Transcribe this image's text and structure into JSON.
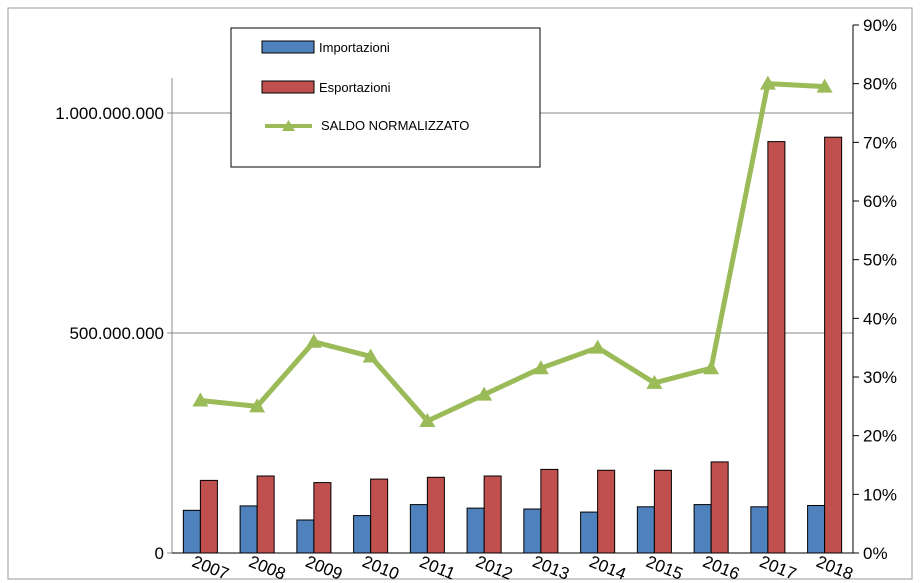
{
  "chart_data": {
    "type": "bar",
    "categories": [
      "2007",
      "2008",
      "2009",
      "2010",
      "2011",
      "2012",
      "2013",
      "2014",
      "2015",
      "2016",
      "2017",
      "2018"
    ],
    "series": [
      {
        "name": "Importazioni",
        "kind": "bar",
        "axis": "left",
        "color": "#4F81BD",
        "values": [
          97000000,
          107000000,
          75000000,
          85000000,
          110000000,
          102000000,
          100000000,
          93000000,
          105000000,
          110000000,
          105000000,
          108000000
        ]
      },
      {
        "name": "Esportazioni",
        "kind": "bar",
        "axis": "left",
        "color": "#C0504D",
        "values": [
          165000000,
          175000000,
          160000000,
          168000000,
          172000000,
          175000000,
          190000000,
          188000000,
          188000000,
          207000000,
          935000000,
          945000000
        ]
      },
      {
        "name": "SALDO NORMALIZZATO",
        "kind": "line",
        "axis": "right",
        "color": "#9BBB59",
        "values": [
          0.26,
          0.25,
          0.36,
          0.335,
          0.225,
          0.27,
          0.315,
          0.35,
          0.29,
          0.315,
          0.8,
          0.795
        ]
      }
    ],
    "y_left": {
      "range": [
        0,
        1200000000
      ],
      "ticks": [
        0,
        500000000,
        1000000000
      ],
      "tick_labels": [
        "0",
        "500.000.000",
        "1.000.000.000"
      ]
    },
    "y_right": {
      "range": [
        0,
        0.9
      ],
      "ticks": [
        0,
        0.1,
        0.2,
        0.3,
        0.4,
        0.5,
        0.6,
        0.7,
        0.8,
        0.9
      ],
      "tick_labels": [
        "0%",
        "10%",
        "20%",
        "30%",
        "40%",
        "50%",
        "60%",
        "70%",
        "80%",
        "90%"
      ]
    },
    "grid": true,
    "legend_position": "top-left"
  }
}
